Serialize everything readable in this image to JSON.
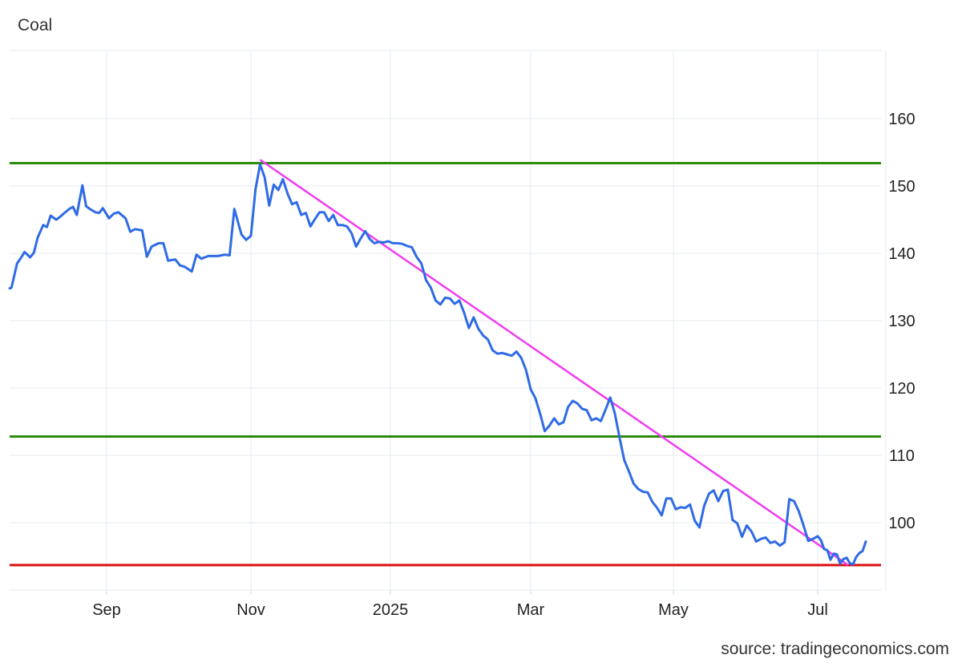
{
  "chart_data": {
    "type": "line",
    "title": "Coal",
    "source": "source: tradingeconomics.com",
    "xlabel": "",
    "ylabel": "",
    "x_ticks": [
      {
        "label": "Sep",
        "date": "2024-09-01"
      },
      {
        "label": "Nov",
        "date": "2024-11-01"
      },
      {
        "label": "2025",
        "date": "2025-01-01"
      },
      {
        "label": "Mar",
        "date": "2025-03-01"
      },
      {
        "label": "May",
        "date": "2025-05-01"
      },
      {
        "label": "Jul",
        "date": "2025-07-01"
      }
    ],
    "y_ticks": [
      100,
      110,
      120,
      130,
      140,
      150,
      160
    ],
    "xlim": [
      "2024-07-11",
      "2025-07-31"
    ],
    "ylim": [
      90,
      170
    ],
    "grid": true,
    "y_axis_side": "right",
    "colors": {
      "series": "#2f6be6",
      "resistance": "#2e8b0e",
      "support": "#dd1111",
      "trendline": "#f03cf0",
      "grid": "#e6ebf1"
    },
    "series": [
      {
        "points": [
          [
            "2024-07-11",
            134.8
          ],
          [
            "2024-07-12",
            134.9
          ],
          [
            "2024-07-15",
            138.5
          ],
          [
            "2024-07-17",
            139.3
          ],
          [
            "2024-07-19",
            140.2
          ],
          [
            "2024-07-22",
            139.4
          ],
          [
            "2024-07-24",
            140.1
          ],
          [
            "2024-07-26",
            142.3
          ],
          [
            "2024-07-29",
            144.2
          ],
          [
            "2024-07-31",
            143.9
          ],
          [
            "2024-08-02",
            145.6
          ],
          [
            "2024-08-05",
            145.0
          ],
          [
            "2024-08-07",
            145.4
          ],
          [
            "2024-08-09",
            145.9
          ],
          [
            "2024-08-12",
            146.6
          ],
          [
            "2024-08-14",
            146.9
          ],
          [
            "2024-08-16",
            145.7
          ],
          [
            "2024-08-19",
            150.1
          ],
          [
            "2024-08-21",
            147.0
          ],
          [
            "2024-08-23",
            146.6
          ],
          [
            "2024-08-26",
            146.1
          ],
          [
            "2024-08-28",
            146.0
          ],
          [
            "2024-08-30",
            146.7
          ],
          [
            "2024-09-02",
            145.2
          ],
          [
            "2024-09-04",
            145.9
          ],
          [
            "2024-09-06",
            146.1
          ],
          [
            "2024-09-09",
            145.2
          ],
          [
            "2024-09-11",
            143.2
          ],
          [
            "2024-09-13",
            143.6
          ],
          [
            "2024-09-16",
            143.4
          ],
          [
            "2024-09-18",
            139.5
          ],
          [
            "2024-09-20",
            141.0
          ],
          [
            "2024-09-23",
            141.5
          ],
          [
            "2024-09-25",
            141.5
          ],
          [
            "2024-09-27",
            138.9
          ],
          [
            "2024-09-30",
            139.1
          ],
          [
            "2024-10-02",
            138.2
          ],
          [
            "2024-10-04",
            138.0
          ],
          [
            "2024-10-07",
            137.3
          ],
          [
            "2024-10-09",
            139.8
          ],
          [
            "2024-10-11",
            139.2
          ],
          [
            "2024-10-14",
            139.6
          ],
          [
            "2024-10-16",
            139.6
          ],
          [
            "2024-10-18",
            139.6
          ],
          [
            "2024-10-21",
            139.8
          ],
          [
            "2024-10-23",
            139.7
          ],
          [
            "2024-10-25",
            146.6
          ],
          [
            "2024-10-28",
            142.8
          ],
          [
            "2024-10-30",
            142.0
          ],
          [
            "2024-11-01",
            142.6
          ],
          [
            "2024-11-03",
            149.5
          ],
          [
            "2024-11-05",
            153.2
          ],
          [
            "2024-11-07",
            151.3
          ],
          [
            "2024-11-09",
            147.1
          ],
          [
            "2024-11-11",
            150.2
          ],
          [
            "2024-11-13",
            149.4
          ],
          [
            "2024-11-15",
            151.0
          ],
          [
            "2024-11-17",
            148.9
          ],
          [
            "2024-11-19",
            147.3
          ],
          [
            "2024-11-21",
            147.6
          ],
          [
            "2024-11-23",
            145.7
          ],
          [
            "2024-11-25",
            146.0
          ],
          [
            "2024-11-27",
            144.0
          ],
          [
            "2024-11-29",
            145.1
          ],
          [
            "2024-12-01",
            146.1
          ],
          [
            "2024-12-03",
            146.1
          ],
          [
            "2024-12-05",
            144.8
          ],
          [
            "2024-12-07",
            145.7
          ],
          [
            "2024-12-09",
            144.2
          ],
          [
            "2024-12-11",
            144.2
          ],
          [
            "2024-12-13",
            144.0
          ],
          [
            "2024-12-15",
            143.0
          ],
          [
            "2024-12-17",
            141.0
          ],
          [
            "2024-12-19",
            142.2
          ],
          [
            "2024-12-21",
            143.3
          ],
          [
            "2024-12-23",
            142.1
          ],
          [
            "2024-12-25",
            141.5
          ],
          [
            "2024-12-27",
            141.7
          ],
          [
            "2024-12-29",
            141.6
          ],
          [
            "2024-12-31",
            141.8
          ],
          [
            "2025-01-02",
            141.5
          ],
          [
            "2025-01-04",
            141.5
          ],
          [
            "2025-01-06",
            141.4
          ],
          [
            "2025-01-08",
            141.1
          ],
          [
            "2025-01-10",
            140.9
          ],
          [
            "2025-01-12",
            139.5
          ],
          [
            "2025-01-14",
            138.5
          ],
          [
            "2025-01-16",
            136.0
          ],
          [
            "2025-01-18",
            134.9
          ],
          [
            "2025-01-20",
            133.0
          ],
          [
            "2025-01-22",
            132.4
          ],
          [
            "2025-01-24",
            133.4
          ],
          [
            "2025-01-26",
            133.3
          ],
          [
            "2025-01-28",
            132.5
          ],
          [
            "2025-01-30",
            133.0
          ],
          [
            "2025-02-01",
            131.2
          ],
          [
            "2025-02-03",
            128.9
          ],
          [
            "2025-02-05",
            130.5
          ],
          [
            "2025-02-07",
            128.8
          ],
          [
            "2025-02-09",
            127.8
          ],
          [
            "2025-02-11",
            127.2
          ],
          [
            "2025-02-13",
            125.6
          ],
          [
            "2025-02-15",
            125.1
          ],
          [
            "2025-02-17",
            125.2
          ],
          [
            "2025-02-19",
            125.0
          ],
          [
            "2025-02-21",
            124.8
          ],
          [
            "2025-02-23",
            125.4
          ],
          [
            "2025-02-25",
            124.5
          ],
          [
            "2025-02-27",
            122.7
          ],
          [
            "2025-03-01",
            119.8
          ],
          [
            "2025-03-03",
            118.5
          ],
          [
            "2025-03-05",
            116.2
          ],
          [
            "2025-03-07",
            113.6
          ],
          [
            "2025-03-09",
            114.4
          ],
          [
            "2025-03-11",
            115.5
          ],
          [
            "2025-03-13",
            114.6
          ],
          [
            "2025-03-15",
            114.9
          ],
          [
            "2025-03-17",
            117.2
          ],
          [
            "2025-03-19",
            118.1
          ],
          [
            "2025-03-21",
            117.7
          ],
          [
            "2025-03-23",
            116.9
          ],
          [
            "2025-03-25",
            116.7
          ],
          [
            "2025-03-27",
            115.2
          ],
          [
            "2025-03-29",
            115.5
          ],
          [
            "2025-03-31",
            115.1
          ],
          [
            "2025-04-02",
            116.8
          ],
          [
            "2025-04-04",
            118.6
          ],
          [
            "2025-04-06",
            116.2
          ],
          [
            "2025-04-08",
            112.6
          ],
          [
            "2025-04-10",
            109.3
          ],
          [
            "2025-04-12",
            107.6
          ],
          [
            "2025-04-14",
            105.8
          ],
          [
            "2025-04-16",
            105.0
          ],
          [
            "2025-04-18",
            104.6
          ],
          [
            "2025-04-20",
            104.5
          ],
          [
            "2025-04-22",
            103.1
          ],
          [
            "2025-04-24",
            102.2
          ],
          [
            "2025-04-26",
            101.1
          ],
          [
            "2025-04-28",
            103.6
          ],
          [
            "2025-04-30",
            103.6
          ],
          [
            "2025-05-02",
            102.0
          ],
          [
            "2025-05-04",
            102.3
          ],
          [
            "2025-05-06",
            102.2
          ],
          [
            "2025-05-08",
            102.7
          ],
          [
            "2025-05-10",
            100.3
          ],
          [
            "2025-05-12",
            99.3
          ],
          [
            "2025-05-14",
            102.5
          ],
          [
            "2025-05-16",
            104.3
          ],
          [
            "2025-05-18",
            104.8
          ],
          [
            "2025-05-20",
            103.2
          ],
          [
            "2025-05-22",
            104.7
          ],
          [
            "2025-05-24",
            104.9
          ],
          [
            "2025-05-26",
            100.4
          ],
          [
            "2025-05-28",
            99.9
          ],
          [
            "2025-05-30",
            97.9
          ],
          [
            "2025-06-01",
            99.6
          ],
          [
            "2025-06-03",
            98.7
          ],
          [
            "2025-06-05",
            97.2
          ],
          [
            "2025-06-07",
            97.6
          ],
          [
            "2025-06-09",
            97.8
          ],
          [
            "2025-06-11",
            97.0
          ],
          [
            "2025-06-13",
            97.2
          ],
          [
            "2025-06-15",
            96.6
          ],
          [
            "2025-06-17",
            97.1
          ],
          [
            "2025-06-19",
            103.5
          ],
          [
            "2025-06-21",
            103.2
          ],
          [
            "2025-06-23",
            101.7
          ],
          [
            "2025-06-25",
            99.6
          ],
          [
            "2025-06-27",
            97.3
          ],
          [
            "2025-06-29",
            97.6
          ],
          [
            "2025-07-01",
            98.0
          ],
          [
            "2025-07-03",
            97.4
          ],
          [
            "2025-07-05",
            96.1
          ],
          [
            "2025-07-07",
            95.9
          ],
          [
            "2025-07-09",
            94.5
          ],
          [
            "2025-07-11",
            95.4
          ],
          [
            "2025-07-13",
            95.3
          ],
          [
            "2025-07-15",
            93.9
          ],
          [
            "2025-07-17",
            94.6
          ],
          [
            "2025-07-19",
            94.8
          ],
          [
            "2025-07-21",
            94.0
          ],
          [
            "2025-07-23",
            93.8
          ],
          [
            "2025-07-25",
            94.9
          ],
          [
            "2025-07-27",
            95.5
          ],
          [
            "2025-07-29",
            95.8
          ],
          [
            "2025-07-31",
            97.2
          ]
        ]
      }
    ],
    "reference_lines": [
      {
        "kind": "horizontal",
        "role": "resistance",
        "y": 153.4,
        "x_from": "2024-07-11",
        "x_to": "2025-07-31"
      },
      {
        "kind": "horizontal",
        "role": "resistance",
        "y": 112.8,
        "x_from": "2024-07-11",
        "x_to": "2025-07-31"
      },
      {
        "kind": "horizontal",
        "role": "support",
        "y": 93.7,
        "x_from": "2024-07-11",
        "x_to": "2025-07-31"
      },
      {
        "kind": "trendline",
        "role": "trendline",
        "from": [
          "2024-11-05",
          153.9
        ],
        "to": [
          "2025-07-20",
          93.7
        ]
      }
    ]
  }
}
